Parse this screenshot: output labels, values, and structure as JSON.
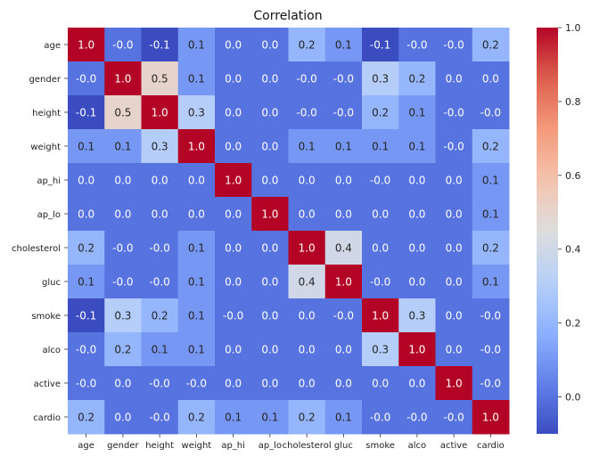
{
  "chart_data": {
    "type": "heatmap",
    "title": "Correlation",
    "xlabel": "",
    "ylabel": "",
    "labels": [
      "age",
      "gender",
      "height",
      "weight",
      "ap_hi",
      "ap_lo",
      "cholesterol",
      "gluc",
      "smoke",
      "alco",
      "active",
      "cardio"
    ],
    "values": [
      [
        1.0,
        -0.0,
        -0.1,
        0.1,
        0.0,
        0.0,
        0.2,
        0.1,
        -0.1,
        -0.0,
        -0.0,
        0.2
      ],
      [
        -0.0,
        1.0,
        0.5,
        0.1,
        0.0,
        0.0,
        -0.0,
        -0.0,
        0.3,
        0.2,
        0.0,
        0.0
      ],
      [
        -0.1,
        0.5,
        1.0,
        0.3,
        0.0,
        0.0,
        -0.0,
        -0.0,
        0.2,
        0.1,
        -0.0,
        -0.0
      ],
      [
        0.1,
        0.1,
        0.3,
        1.0,
        0.0,
        0.0,
        0.1,
        0.1,
        0.1,
        0.1,
        -0.0,
        0.2
      ],
      [
        0.0,
        0.0,
        0.0,
        0.0,
        1.0,
        0.0,
        0.0,
        0.0,
        -0.0,
        0.0,
        0.0,
        0.1
      ],
      [
        0.0,
        0.0,
        0.0,
        0.0,
        0.0,
        1.0,
        0.0,
        0.0,
        0.0,
        0.0,
        0.0,
        0.1
      ],
      [
        0.2,
        -0.0,
        -0.0,
        0.1,
        0.0,
        0.0,
        1.0,
        0.4,
        0.0,
        0.0,
        0.0,
        0.2
      ],
      [
        0.1,
        -0.0,
        -0.0,
        0.1,
        0.0,
        0.0,
        0.4,
        1.0,
        -0.0,
        0.0,
        0.0,
        0.1
      ],
      [
        -0.1,
        0.3,
        0.2,
        0.1,
        -0.0,
        0.0,
        0.0,
        -0.0,
        1.0,
        0.3,
        0.0,
        -0.0
      ],
      [
        -0.0,
        0.2,
        0.1,
        0.1,
        0.0,
        0.0,
        0.0,
        0.0,
        0.3,
        1.0,
        0.0,
        -0.0
      ],
      [
        -0.0,
        0.0,
        -0.0,
        -0.0,
        0.0,
        0.0,
        0.0,
        0.0,
        0.0,
        0.0,
        1.0,
        -0.0
      ],
      [
        0.2,
        0.0,
        -0.0,
        0.2,
        0.1,
        0.1,
        0.2,
        0.1,
        -0.0,
        -0.0,
        -0.0,
        1.0
      ]
    ],
    "colorbar": {
      "range": [
        -0.1,
        1.0
      ],
      "ticks": [
        0.0,
        0.2,
        0.4,
        0.6,
        0.8,
        1.0
      ],
      "tick_labels": [
        "0.0",
        "0.2",
        "0.4",
        "0.6",
        "0.8",
        "1.0"
      ],
      "colormap": "coolwarm"
    },
    "grid": false,
    "legend": "colorbar-right"
  }
}
